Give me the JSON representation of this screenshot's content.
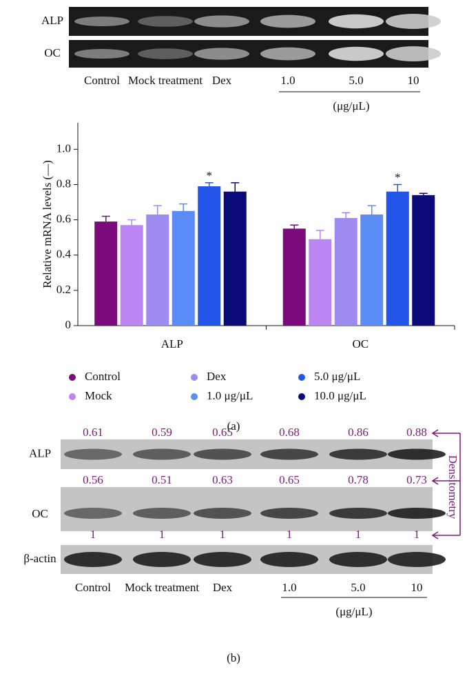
{
  "panel_a": {
    "gel_rows": [
      "ALP",
      "OC"
    ],
    "lanes": [
      "Control",
      "Mock treatment",
      "Dex",
      "1.0",
      "5.0",
      "10"
    ],
    "unit": "(μg/μL)",
    "label": "(a)"
  },
  "chart_data": {
    "type": "bar",
    "y_label": "Relative mRNA levels (—)",
    "categories": [
      "ALP",
      "OC"
    ],
    "series": [
      {
        "name": "Control",
        "color": "#7b0a7a",
        "values": [
          0.59,
          0.55
        ],
        "errors": [
          0.03,
          0.02
        ]
      },
      {
        "name": "Mock",
        "color": "#bb86f2",
        "values": [
          0.57,
          0.49
        ],
        "errors": [
          0.03,
          0.05
        ]
      },
      {
        "name": "Dex",
        "color": "#9d8bf0",
        "values": [
          0.63,
          0.61
        ],
        "errors": [
          0.05,
          0.03
        ]
      },
      {
        "name": "1.0 μg/μL",
        "color": "#5b8cf5",
        "values": [
          0.65,
          0.63
        ],
        "errors": [
          0.04,
          0.05
        ]
      },
      {
        "name": "5.0 μg/μL",
        "color": "#2255e8",
        "values": [
          0.79,
          0.76
        ],
        "errors": [
          0.02,
          0.04
        ],
        "annotations": [
          "*",
          "*"
        ]
      },
      {
        "name": "10.0 μg/μL",
        "color": "#0a0a78",
        "values": [
          0.76,
          0.74
        ],
        "errors": [
          0.05,
          0.01
        ]
      }
    ],
    "ylim": [
      0,
      1.15
    ],
    "yticks": [
      0,
      0.2,
      0.4,
      0.6,
      0.8,
      {
        "value": 1,
        "label": "1.0"
      }
    ],
    "legend": "bottom"
  },
  "panel_b": {
    "gel_rows": [
      "ALP",
      "OC",
      "β-actin"
    ],
    "densitometry": [
      [
        0.61,
        0.59,
        0.65,
        0.68,
        0.86,
        0.88
      ],
      [
        0.56,
        0.51,
        0.63,
        0.65,
        0.78,
        0.73
      ],
      [
        1,
        1,
        1,
        1,
        1,
        1
      ]
    ],
    "densitometry_label": "Densitometry",
    "lanes": [
      "Control",
      "Mock treatment",
      "Dex",
      "1.0",
      "5.0",
      "10"
    ],
    "unit": "(μg/μL)",
    "label": "(b)"
  }
}
